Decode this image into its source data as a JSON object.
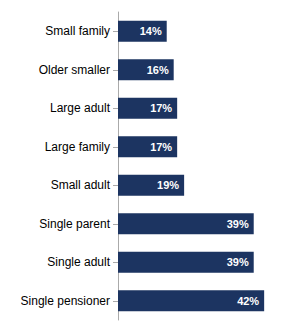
{
  "chart_data": {
    "type": "bar",
    "orientation": "horizontal",
    "categories": [
      "Small family",
      "Older smaller",
      "Large adult",
      "Large family",
      "Small adult",
      "Single parent",
      "Single adult",
      "Single pensioner"
    ],
    "values": [
      14,
      16,
      17,
      17,
      19,
      39,
      39,
      42
    ],
    "value_labels": [
      "14%",
      "16%",
      "17%",
      "17%",
      "19%",
      "39%",
      "39%",
      "42%"
    ],
    "color": "#1c3461",
    "xlim": [
      0,
      50
    ],
    "data_labels": true,
    "tick_labels": "y",
    "grid": false
  }
}
